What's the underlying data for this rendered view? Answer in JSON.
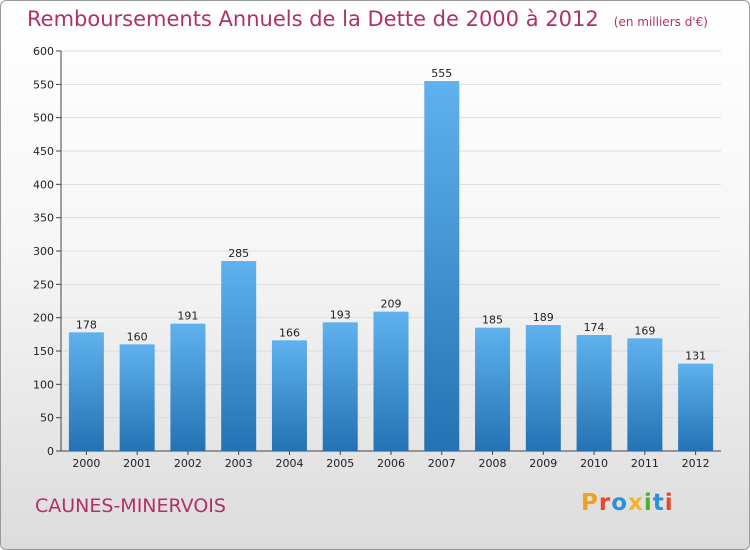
{
  "header": {
    "title": "Remboursements Annuels de la Dette de 2000 à 2012",
    "unit": "(en milliers d'€)"
  },
  "footer": {
    "town": "CAUNES-MINERVOIS",
    "logo": "Proxiti",
    "logo_colors": [
      "#f0a020",
      "#e8472a",
      "#2f8fd6",
      "#f5b52a",
      "#4caf30",
      "#2f8fd6",
      "#e8472a"
    ]
  },
  "colors": {
    "title": "#b0306a",
    "bar_top": "#5fb2ee",
    "bar_bottom": "#2472b4",
    "grid": "#dddddd"
  },
  "chart_data": {
    "type": "bar",
    "title": "Remboursements Annuels de la Dette de 2000 à 2012",
    "subtitle": "(en milliers d'€)",
    "categories": [
      "2000",
      "2001",
      "2002",
      "2003",
      "2004",
      "2005",
      "2006",
      "2007",
      "2008",
      "2009",
      "2010",
      "2011",
      "2012"
    ],
    "values": [
      178,
      160,
      191,
      285,
      166,
      193,
      209,
      555,
      185,
      189,
      174,
      169,
      131
    ],
    "yticks": [
      0,
      50,
      100,
      150,
      200,
      250,
      300,
      350,
      400,
      450,
      500,
      550,
      600
    ],
    "ylim": [
      0,
      600
    ],
    "grid": true,
    "xlabel": "",
    "ylabel": ""
  }
}
